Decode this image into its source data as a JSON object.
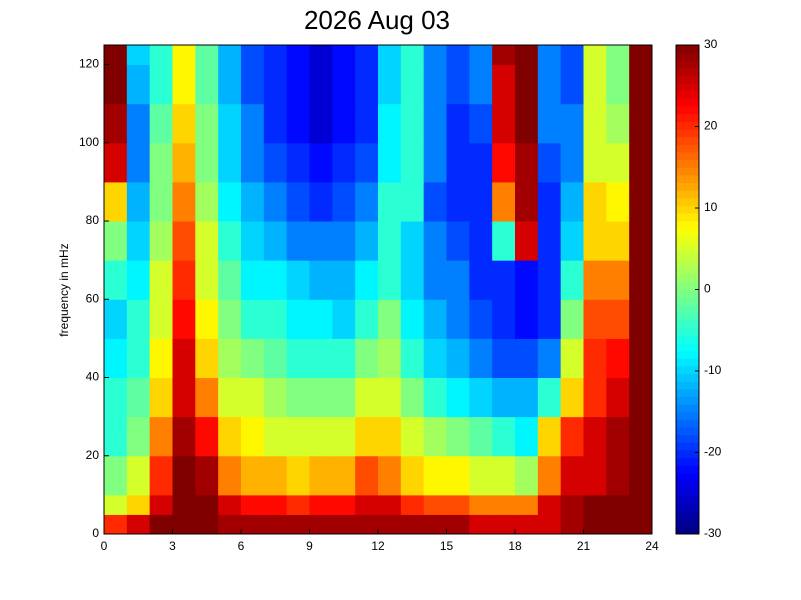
{
  "chart_data": {
    "type": "heatmap",
    "title": "2026 Aug 03",
    "ylabel": "frequency in mHz",
    "colormap": "jet",
    "xbins": [
      0,
      1,
      2,
      3,
      4,
      5,
      6,
      7,
      8,
      9,
      10,
      11,
      12,
      13,
      14,
      15,
      16,
      17,
      18,
      19,
      20,
      21,
      22,
      23,
      24
    ],
    "ybins": [
      0,
      5,
      10,
      20,
      30,
      40,
      50,
      60,
      70,
      80,
      90,
      100,
      110,
      120,
      125
    ],
    "z": [
      [
        20,
        25,
        30,
        30,
        30,
        28,
        28,
        28,
        28,
        28,
        28,
        28,
        28,
        28,
        28,
        28,
        25,
        25,
        25,
        25,
        28,
        30,
        30,
        30
      ],
      [
        5,
        10,
        25,
        30,
        30,
        25,
        22,
        22,
        20,
        22,
        22,
        25,
        25,
        20,
        18,
        18,
        15,
        15,
        15,
        25,
        28,
        30,
        30,
        30
      ],
      [
        0,
        5,
        20,
        30,
        28,
        15,
        12,
        12,
        10,
        12,
        12,
        18,
        15,
        10,
        8,
        8,
        5,
        5,
        2,
        15,
        25,
        25,
        28,
        30
      ],
      [
        -5,
        0,
        15,
        28,
        22,
        10,
        8,
        5,
        5,
        5,
        5,
        10,
        10,
        5,
        2,
        0,
        -2,
        -5,
        -8,
        10,
        20,
        25,
        28,
        30
      ],
      [
        -5,
        -2,
        10,
        25,
        15,
        5,
        5,
        2,
        0,
        0,
        0,
        5,
        5,
        0,
        -5,
        -8,
        -10,
        -12,
        -12,
        -5,
        10,
        20,
        25,
        30
      ],
      [
        -8,
        -5,
        8,
        25,
        10,
        2,
        0,
        -2,
        -5,
        -5,
        -5,
        0,
        2,
        -5,
        -10,
        -12,
        -15,
        -18,
        -18,
        -15,
        5,
        20,
        22,
        30
      ],
      [
        -10,
        -5,
        5,
        22,
        8,
        0,
        -5,
        -5,
        -8,
        -8,
        -10,
        -5,
        0,
        -8,
        -12,
        -15,
        -18,
        -20,
        -22,
        -20,
        0,
        18,
        18,
        30
      ],
      [
        -5,
        -8,
        5,
        20,
        5,
        -2,
        -8,
        -8,
        -10,
        -12,
        -12,
        -8,
        -5,
        -10,
        -15,
        -15,
        -20,
        -20,
        -22,
        -20,
        -5,
        15,
        15,
        30
      ],
      [
        0,
        -10,
        2,
        18,
        5,
        -5,
        -10,
        -12,
        -15,
        -15,
        -15,
        -12,
        -5,
        -10,
        -15,
        -18,
        -20,
        -5,
        25,
        -20,
        -10,
        10,
        10,
        30
      ],
      [
        10,
        -12,
        0,
        15,
        2,
        -8,
        -12,
        -15,
        -18,
        -20,
        -18,
        -15,
        -5,
        -5,
        -18,
        -20,
        -20,
        15,
        28,
        -20,
        -12,
        10,
        8,
        30
      ],
      [
        25,
        -15,
        0,
        12,
        0,
        -10,
        -15,
        -18,
        -20,
        -22,
        -20,
        -18,
        -8,
        -5,
        -15,
        -20,
        -20,
        22,
        28,
        -18,
        -15,
        5,
        5,
        30
      ],
      [
        28,
        -15,
        -2,
        10,
        0,
        -10,
        -15,
        -20,
        -22,
        -25,
        -22,
        -20,
        -8,
        -5,
        -15,
        -20,
        -18,
        25,
        30,
        -15,
        -15,
        5,
        2,
        30
      ],
      [
        30,
        -12,
        -5,
        8,
        -2,
        -12,
        -18,
        -20,
        -22,
        -25,
        -22,
        -20,
        -10,
        -5,
        -15,
        -18,
        -15,
        25,
        30,
        -15,
        -18,
        5,
        0,
        30
      ],
      [
        30,
        -10,
        -5,
        8,
        -2,
        -12,
        -18,
        -20,
        -22,
        -25,
        -22,
        -20,
        -10,
        -5,
        -15,
        -18,
        -15,
        28,
        30,
        -15,
        -18,
        5,
        0,
        30
      ]
    ],
    "xlim": [
      0,
      24
    ],
    "xticks": [
      0,
      3,
      6,
      9,
      12,
      15,
      18,
      21,
      24
    ],
    "ylim": [
      0,
      125
    ],
    "yticks": [
      0,
      20,
      40,
      60,
      80,
      100,
      120
    ],
    "clim": [
      -30,
      30
    ],
    "cticks": [
      -30,
      -20,
      -10,
      0,
      10,
      20,
      30
    ]
  }
}
